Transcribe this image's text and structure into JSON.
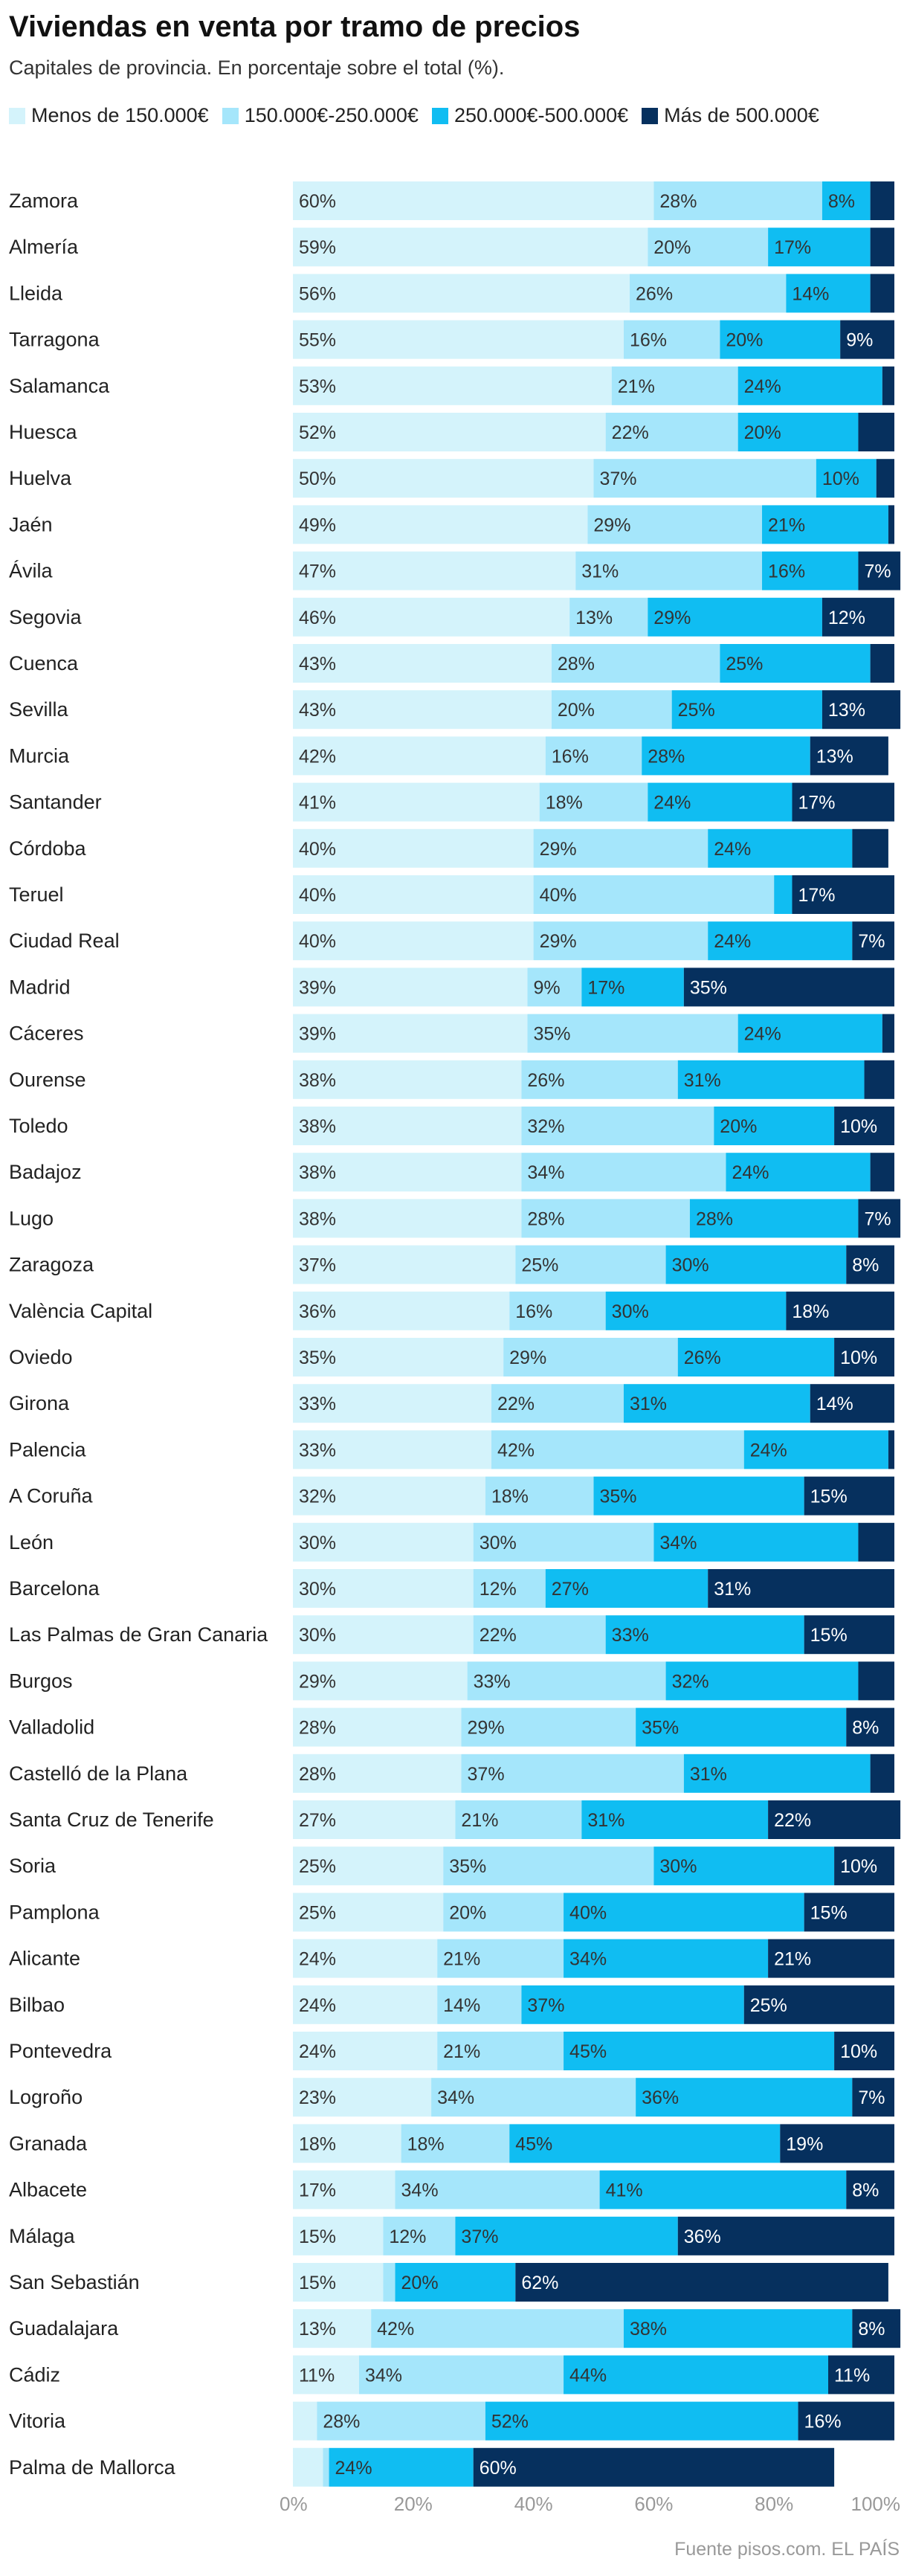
{
  "title": "Viviendas en venta por tramo de precios",
  "subtitle": "Capitales de provincia. En porcentaje sobre el total (%).",
  "source": "Fuente pisos.com. EL PAÍS",
  "colors": [
    "#d4f3fb",
    "#a5e6fb",
    "#10bdf2",
    "#06305e"
  ],
  "chart_data": {
    "type": "bar",
    "orientation": "horizontal",
    "stacked": true,
    "xlim": [
      0,
      100
    ],
    "xticks": [
      "0%",
      "20%",
      "40%",
      "60%",
      "80%",
      "100%"
    ],
    "legend": [
      "Menos de 150.000€",
      "150.000€-250.000€",
      "250.000€-500.000€",
      "Más de 500.000€"
    ],
    "categories": [
      "Zamora",
      "Almería",
      "Lleida",
      "Tarragona",
      "Salamanca",
      "Huesca",
      "Huelva",
      "Jaén",
      "Ávila",
      "Segovia",
      "Cuenca",
      "Sevilla",
      "Murcia",
      "Santander",
      "Córdoba",
      "Teruel",
      "Ciudad Real",
      "Madrid",
      "Cáceres",
      "Ourense",
      "Toledo",
      "Badajoz",
      "Lugo",
      "Zaragoza",
      "València Capital",
      "Oviedo",
      "Girona",
      "Palencia",
      "A Coruña",
      "León",
      "Barcelona",
      "Las Palmas de Gran Canaria",
      "Burgos",
      "Valladolid",
      "Castelló de la Plana",
      "Santa Cruz de Tenerife",
      "Soria",
      "Pamplona",
      "Alicante",
      "Bilbao",
      "Pontevedra",
      "Logroño",
      "Granada",
      "Albacete",
      "Málaga",
      "San Sebastián",
      "Guadalajara",
      "Cádiz",
      "Vitoria",
      "Palma de Mallorca"
    ],
    "series": [
      {
        "name": "Menos de 150.000€",
        "values": [
          60,
          59,
          56,
          55,
          53,
          52,
          50,
          49,
          47,
          46,
          43,
          43,
          42,
          41,
          40,
          40,
          40,
          39,
          39,
          38,
          38,
          38,
          38,
          37,
          36,
          35,
          33,
          33,
          32,
          30,
          30,
          30,
          29,
          28,
          28,
          27,
          25,
          25,
          24,
          24,
          24,
          23,
          18,
          17,
          15,
          15,
          13,
          11,
          4,
          5
        ]
      },
      {
        "name": "150.000€-250.000€",
        "values": [
          28,
          20,
          26,
          16,
          21,
          22,
          37,
          29,
          31,
          13,
          28,
          20,
          16,
          18,
          29,
          40,
          29,
          9,
          35,
          26,
          32,
          34,
          28,
          25,
          16,
          29,
          22,
          42,
          18,
          30,
          12,
          22,
          33,
          29,
          37,
          21,
          35,
          20,
          21,
          14,
          21,
          34,
          18,
          34,
          12,
          2,
          42,
          34,
          28,
          1
        ]
      },
      {
        "name": "250.000€-500.000€",
        "values": [
          8,
          17,
          14,
          20,
          24,
          20,
          10,
          21,
          16,
          29,
          25,
          25,
          28,
          24,
          24,
          3,
          24,
          17,
          24,
          31,
          20,
          24,
          28,
          30,
          30,
          26,
          31,
          24,
          35,
          34,
          27,
          33,
          32,
          35,
          31,
          31,
          30,
          40,
          34,
          37,
          45,
          36,
          45,
          41,
          37,
          20,
          38,
          44,
          52,
          24
        ]
      },
      {
        "name": "Más de 500.000€",
        "values": [
          4,
          4,
          4,
          9,
          2,
          6,
          3,
          1,
          7,
          12,
          4,
          13,
          13,
          17,
          6,
          17,
          7,
          35,
          2,
          5,
          10,
          4,
          7,
          8,
          18,
          10,
          14,
          1,
          15,
          6,
          31,
          15,
          6,
          8,
          4,
          22,
          10,
          15,
          21,
          25,
          10,
          7,
          19,
          8,
          36,
          62,
          8,
          11,
          16,
          60
        ]
      }
    ],
    "labels": [
      [
        "60%",
        "28%",
        "8%",
        ""
      ],
      [
        "59%",
        "20%",
        "17%",
        ""
      ],
      [
        "56%",
        "26%",
        "14%",
        ""
      ],
      [
        "55%",
        "16%",
        "20%",
        "9%"
      ],
      [
        "53%",
        "21%",
        "24%",
        ""
      ],
      [
        "52%",
        "22%",
        "20%",
        ""
      ],
      [
        "50%",
        "37%",
        "10%",
        ""
      ],
      [
        "49%",
        "29%",
        "21%",
        ""
      ],
      [
        "47%",
        "31%",
        "16%",
        "7%"
      ],
      [
        "46%",
        "13%",
        "29%",
        "12%"
      ],
      [
        "43%",
        "28%",
        "25%",
        ""
      ],
      [
        "43%",
        "20%",
        "25%",
        "13%"
      ],
      [
        "42%",
        "16%",
        "28%",
        "13%"
      ],
      [
        "41%",
        "18%",
        "24%",
        "17%"
      ],
      [
        "40%",
        "29%",
        "24%",
        ""
      ],
      [
        "40%",
        "40%",
        "",
        "17%"
      ],
      [
        "40%",
        "29%",
        "24%",
        "7%"
      ],
      [
        "39%",
        "9%",
        "17%",
        "35%"
      ],
      [
        "39%",
        "35%",
        "24%",
        ""
      ],
      [
        "38%",
        "26%",
        "31%",
        ""
      ],
      [
        "38%",
        "32%",
        "20%",
        "10%"
      ],
      [
        "38%",
        "34%",
        "24%",
        ""
      ],
      [
        "38%",
        "28%",
        "28%",
        "7%"
      ],
      [
        "37%",
        "25%",
        "30%",
        "8%"
      ],
      [
        "36%",
        "16%",
        "30%",
        "18%"
      ],
      [
        "35%",
        "29%",
        "26%",
        "10%"
      ],
      [
        "33%",
        "22%",
        "31%",
        "14%"
      ],
      [
        "33%",
        "42%",
        "24%",
        ""
      ],
      [
        "32%",
        "18%",
        "35%",
        "15%"
      ],
      [
        "30%",
        "30%",
        "34%",
        ""
      ],
      [
        "30%",
        "12%",
        "27%",
        "31%"
      ],
      [
        "30%",
        "22%",
        "33%",
        "15%"
      ],
      [
        "29%",
        "33%",
        "32%",
        ""
      ],
      [
        "28%",
        "29%",
        "35%",
        "8%"
      ],
      [
        "28%",
        "37%",
        "31%",
        ""
      ],
      [
        "27%",
        "21%",
        "31%",
        "22%"
      ],
      [
        "25%",
        "35%",
        "30%",
        "10%"
      ],
      [
        "25%",
        "20%",
        "40%",
        "15%"
      ],
      [
        "24%",
        "21%",
        "34%",
        "21%"
      ],
      [
        "24%",
        "14%",
        "37%",
        "25%"
      ],
      [
        "24%",
        "21%",
        "45%",
        "10%"
      ],
      [
        "23%",
        "34%",
        "36%",
        "7%"
      ],
      [
        "18%",
        "18%",
        "45%",
        "19%"
      ],
      [
        "17%",
        "34%",
        "41%",
        "8%"
      ],
      [
        "15%",
        "12%",
        "37%",
        "36%"
      ],
      [
        "15%",
        "",
        "20%",
        "62%"
      ],
      [
        "13%",
        "42%",
        "38%",
        "8%"
      ],
      [
        "11%",
        "34%",
        "44%",
        "11%"
      ],
      [
        "",
        "28%",
        "52%",
        "16%"
      ],
      [
        "",
        "",
        "24%",
        "60%"
      ]
    ]
  }
}
